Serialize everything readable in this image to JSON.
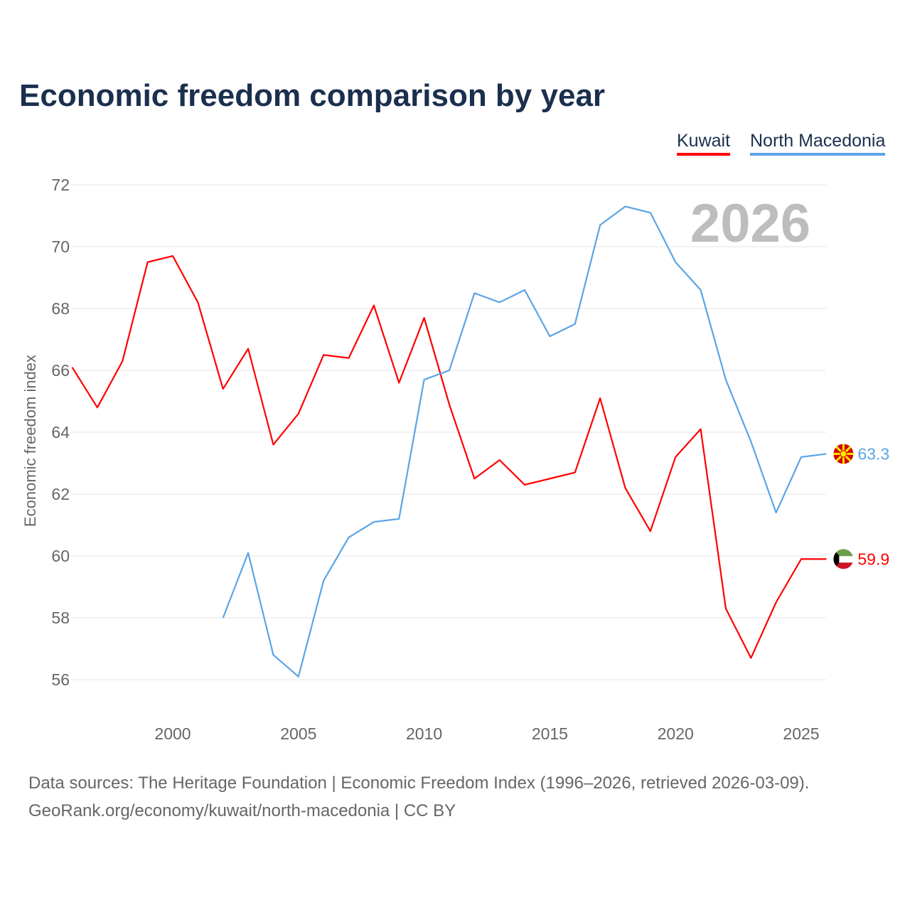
{
  "chart_data": {
    "type": "line",
    "title": "Economic freedom comparison by year",
    "xlabel": "",
    "ylabel": "Economic freedom index",
    "xlim": [
      1996,
      2026
    ],
    "ylim": [
      55,
      72.5
    ],
    "yticks": [
      56,
      58,
      60,
      62,
      64,
      66,
      68,
      70,
      72
    ],
    "xticks": [
      2000,
      2005,
      2010,
      2015,
      2020,
      2025
    ],
    "grid": true,
    "legend_placement": "top-right",
    "watermark_year": "2026",
    "series": [
      {
        "name": "Kuwait",
        "color": "#ff0000",
        "end_label": "59.9",
        "flag": "kuwait-flag",
        "x": [
          1996,
          1997,
          1998,
          1999,
          2000,
          2001,
          2002,
          2003,
          2004,
          2005,
          2006,
          2007,
          2008,
          2009,
          2010,
          2011,
          2012,
          2013,
          2014,
          2015,
          2016,
          2017,
          2018,
          2019,
          2020,
          2021,
          2022,
          2023,
          2024,
          2025,
          2026
        ],
        "values": [
          66.1,
          64.8,
          66.3,
          69.5,
          69.7,
          68.2,
          65.4,
          66.7,
          63.6,
          64.6,
          66.5,
          66.4,
          68.1,
          65.6,
          67.7,
          64.9,
          62.5,
          63.1,
          62.3,
          62.5,
          62.7,
          65.1,
          62.2,
          60.8,
          63.2,
          64.1,
          58.3,
          56.7,
          58.5,
          59.9,
          59.9
        ]
      },
      {
        "name": "North Macedonia",
        "color": "#5ba4e6",
        "end_label": "63.3",
        "flag": "north-macedonia-flag",
        "x": [
          2002,
          2003,
          2004,
          2005,
          2006,
          2007,
          2008,
          2009,
          2010,
          2011,
          2012,
          2013,
          2014,
          2015,
          2016,
          2017,
          2018,
          2019,
          2020,
          2021,
          2022,
          2023,
          2024,
          2025,
          2026
        ],
        "values": [
          58.0,
          60.1,
          56.8,
          56.1,
          59.2,
          60.6,
          61.1,
          61.2,
          65.7,
          66.0,
          68.5,
          68.2,
          68.6,
          67.1,
          67.5,
          70.7,
          71.3,
          71.1,
          69.5,
          68.6,
          65.7,
          63.7,
          61.4,
          63.2,
          63.3
        ]
      }
    ]
  },
  "footer": {
    "line1": "Data sources: The Heritage Foundation | Economic Freedom Index (1996–2026, retrieved 2026-03-09).",
    "line2": "GeoRank.org/economy/kuwait/north-macedonia | CC BY"
  }
}
